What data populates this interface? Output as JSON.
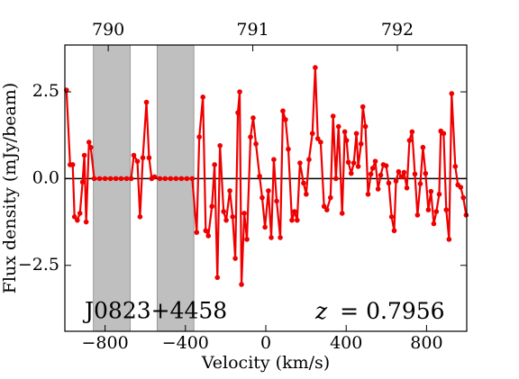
{
  "chart_data": {
    "type": "line",
    "x_label": "Velocity (km/s)",
    "y_label": "Flux density (mJy/beam)",
    "xlim": [
      -1000,
      1000
    ],
    "ylim": [
      -4.4,
      3.85
    ],
    "xticks": [
      {
        "value": -800,
        "label": "−800"
      },
      {
        "value": -400,
        "label": "−400"
      },
      0,
      400,
      800
    ],
    "yticks": [
      2.5,
      {
        "value": 0,
        "label": "0.0"
      },
      {
        "value": -2.5,
        "label": "−2.5"
      }
    ],
    "x2lim": [
      789.7,
      792.48
    ],
    "x2ticks": [
      790,
      791,
      792
    ],
    "zero_line": true,
    "shaded_regions": {
      "color": "#bfbfbf",
      "ranges": [
        [
          -858,
          -675
        ],
        [
          -541,
          -358
        ]
      ]
    },
    "annotations": [
      {
        "text": "J0823+4458"
      },
      {
        "symbol": "z",
        "text": "= 0.7956"
      }
    ],
    "series": [
      {
        "color": "#ee0000",
        "x": [
          -992,
          -974,
          -961,
          -952,
          -938,
          -925,
          -912,
          -903,
          -894,
          -880,
          -871,
          -854,
          -827,
          -800,
          -773,
          -746,
          -720,
          -693,
          -670,
          -657,
          -639,
          -626,
          -612,
          -594,
          -581,
          -568,
          -554,
          -527,
          -501,
          -474,
          -447,
          -420,
          -393,
          -366,
          -344,
          -331,
          -313,
          -299,
          -286,
          -268,
          -255,
          -241,
          -228,
          -210,
          -197,
          -179,
          -165,
          -152,
          -139,
          -130,
          -121,
          -107,
          -94,
          -76,
          -63,
          -49,
          -31,
          -18,
          -4,
          13,
          27,
          40,
          54,
          72,
          85,
          98,
          112,
          130,
          143,
          156,
          170,
          188,
          201,
          215,
          232,
          246,
          259,
          273,
          290,
          304,
          322,
          335,
          349,
          362,
          380,
          393,
          402,
          411,
          425,
          438,
          451,
          460,
          474,
          483,
          496,
          509,
          523,
          532,
          545,
          559,
          572,
          585,
          599,
          612,
          626,
          639,
          648,
          661,
          675,
          688,
          702,
          715,
          728,
          742,
          755,
          769,
          782,
          795,
          809,
          822,
          836,
          849,
          863,
          871,
          885,
          898,
          912,
          925,
          943,
          956,
          970,
          983,
          997
        ],
        "values": [
          2.55,
          0.4,
          0.4,
          -1.1,
          -1.2,
          -1.0,
          -0.1,
          0.67,
          -1.25,
          1.05,
          0.9,
          0,
          0,
          0,
          0,
          0,
          0,
          0,
          0,
          0.67,
          0.5,
          -1.1,
          0.6,
          2.2,
          0.6,
          0,
          0.05,
          0,
          0,
          0,
          0,
          0,
          0,
          0,
          -1.55,
          1.2,
          2.35,
          -1.5,
          -1.65,
          -0.8,
          0.4,
          -2.85,
          0.95,
          -0.95,
          -1.2,
          -0.35,
          -1.1,
          -2.3,
          1.9,
          2.5,
          -3.05,
          -1.0,
          -1.75,
          1.2,
          1.75,
          1.0,
          0.07,
          -0.55,
          -1.4,
          -0.35,
          -1.7,
          0.55,
          -0.65,
          -1.7,
          1.95,
          1.7,
          0.85,
          -1.2,
          -0.95,
          -1.2,
          0.45,
          -0.13,
          -0.45,
          0.55,
          1.3,
          3.2,
          1.15,
          1.05,
          -0.8,
          -0.9,
          -0.55,
          1.8,
          0,
          1.5,
          -1.0,
          1.35,
          1.1,
          0.47,
          0.15,
          0.45,
          1.3,
          0.35,
          1.0,
          2.07,
          1.5,
          -0.45,
          0.13,
          0.3,
          0.5,
          -0.3,
          0.1,
          0.4,
          0.37,
          -0.13,
          -1.1,
          -1.5,
          -0.07,
          0.2,
          0.05,
          0.18,
          -0.27,
          1.1,
          1.35,
          0.13,
          -1.05,
          -0.15,
          0.9,
          0.15,
          -0.9,
          -0.37,
          -1.3,
          -0.95,
          -0.45,
          1.37,
          1.3,
          -0.9,
          -1.75,
          2.45,
          0.35,
          -0.18,
          -0.25,
          -0.55,
          -1.05
        ]
      }
    ]
  }
}
